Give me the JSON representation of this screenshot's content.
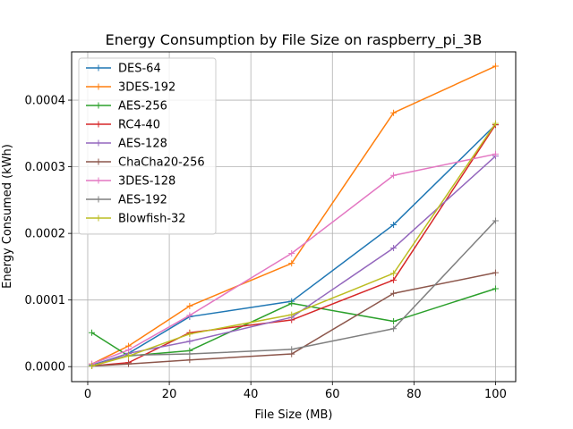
{
  "chart_data": {
    "type": "line",
    "title": "Energy Consumption by File Size on raspberry_pi_3B",
    "xlabel": "File Size (MB)",
    "ylabel": "Energy Consumed (kWh)",
    "xlim": [
      -3.95,
      104.95
    ],
    "ylim": [
      -2.25e-05,
      0.0004725
    ],
    "x_ticks": [
      0,
      20,
      40,
      60,
      80,
      100
    ],
    "x_tick_labels": [
      "0",
      "20",
      "40",
      "60",
      "80",
      "100"
    ],
    "y_ticks": [
      0,
      0.0001,
      0.0002,
      0.0003,
      0.0004
    ],
    "y_tick_labels": [
      "0.0000",
      "0.0001",
      "0.0002",
      "0.0003",
      "0.0004"
    ],
    "grid": true,
    "legend_position": "top-left",
    "x": [
      1,
      10,
      25,
      50,
      75,
      100
    ],
    "series": [
      {
        "name": "DES-64",
        "color": "#1f77b4",
        "values": [
          2e-06,
          2e-05,
          7.5e-05,
          9.8e-05,
          0.000213,
          0.000363
        ]
      },
      {
        "name": "3DES-192",
        "color": "#ff7f0e",
        "values": [
          4e-06,
          3.1e-05,
          9.1e-05,
          0.000155,
          0.000381,
          0.000451
        ]
      },
      {
        "name": "AES-256",
        "color": "#2ca02c",
        "values": [
          5.1e-05,
          1.6e-05,
          2.4e-05,
          9.5e-05,
          6.8e-05,
          0.000117
        ]
      },
      {
        "name": "RC4-40",
        "color": "#d62728",
        "values": [
          1e-06,
          6e-06,
          5.1e-05,
          7e-05,
          0.00013,
          0.000363
        ]
      },
      {
        "name": "AES-128",
        "color": "#9467bd",
        "values": [
          1e-06,
          2e-05,
          3.8e-05,
          7.4e-05,
          0.000178,
          0.000316
        ]
      },
      {
        "name": "ChaCha20-256",
        "color": "#8c564b",
        "values": [
          1e-06,
          4e-06,
          1e-05,
          1.9e-05,
          0.00011,
          0.000141
        ]
      },
      {
        "name": "3DES-128",
        "color": "#e377c2",
        "values": [
          4e-06,
          2.5e-05,
          7.7e-05,
          0.00017,
          0.000287,
          0.000319
        ]
      },
      {
        "name": "AES-192",
        "color": "#7f7f7f",
        "values": [
          1e-06,
          1.7e-05,
          1.9e-05,
          2.6e-05,
          5.7e-05,
          0.000219
        ]
      },
      {
        "name": "Blowfish-32",
        "color": "#bcbd22",
        "values": [
          1e-06,
          1.6e-05,
          4.9e-05,
          7.8e-05,
          0.00014,
          0.000365
        ]
      }
    ]
  }
}
